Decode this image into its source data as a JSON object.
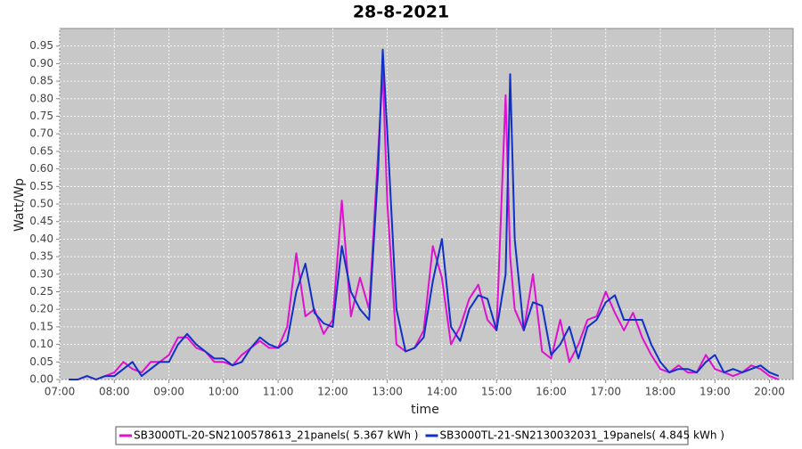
{
  "chart_data": {
    "type": "line",
    "title": "28-8-2021",
    "x_label": "time",
    "y_label": "Watt/Wp",
    "x": [
      "07:10",
      "07:20",
      "07:30",
      "07:40",
      "07:50",
      "08:00",
      "08:10",
      "08:20",
      "08:30",
      "08:40",
      "08:50",
      "09:00",
      "09:10",
      "09:20",
      "09:30",
      "09:40",
      "09:50",
      "10:00",
      "10:10",
      "10:20",
      "10:30",
      "10:40",
      "10:50",
      "11:00",
      "11:10",
      "11:20",
      "11:30",
      "11:40",
      "11:50",
      "12:00",
      "12:10",
      "12:20",
      "12:30",
      "12:40",
      "12:50",
      "12:55",
      "13:00",
      "13:10",
      "13:20",
      "13:30",
      "13:40",
      "13:50",
      "14:00",
      "14:10",
      "14:20",
      "14:30",
      "14:40",
      "14:50",
      "15:00",
      "15:10",
      "15:15",
      "15:20",
      "15:30",
      "15:40",
      "15:50",
      "16:00",
      "16:10",
      "16:20",
      "16:30",
      "16:40",
      "16:50",
      "17:00",
      "17:10",
      "17:20",
      "17:30",
      "17:40",
      "17:50",
      "18:00",
      "18:10",
      "18:20",
      "18:30",
      "18:40",
      "18:50",
      "19:00",
      "19:10",
      "19:20",
      "19:30",
      "19:40",
      "19:50",
      "20:00",
      "20:10"
    ],
    "series": [
      {
        "name": "SB3000TL-20-SN2100578613_21panels( 5.367 kWh )",
        "color": "#e010d0",
        "values": [
          0,
          0,
          0.01,
          0,
          0.01,
          0.02,
          0.05,
          0.03,
          0.02,
          0.05,
          0.05,
          0.07,
          0.12,
          0.12,
          0.09,
          0.08,
          0.05,
          0.05,
          0.04,
          0.07,
          0.09,
          0.11,
          0.09,
          0.09,
          0.15,
          0.36,
          0.18,
          0.2,
          0.13,
          0.17,
          0.51,
          0.18,
          0.29,
          0.2,
          0.65,
          0.88,
          0.5,
          0.1,
          0.08,
          0.09,
          0.14,
          0.38,
          0.29,
          0.1,
          0.15,
          0.23,
          0.27,
          0.17,
          0.14,
          0.81,
          0.35,
          0.2,
          0.14,
          0.3,
          0.08,
          0.06,
          0.17,
          0.05,
          0.1,
          0.17,
          0.18,
          0.25,
          0.19,
          0.14,
          0.19,
          0.12,
          0.07,
          0.03,
          0.02,
          0.04,
          0.02,
          0.02,
          0.07,
          0.03,
          0.02,
          0.01,
          0.02,
          0.04,
          0.03,
          0.01,
          0
        ]
      },
      {
        "name": "SB3000TL-21-SN2130032031_19panels( 4.845 kWh )",
        "color": "#1030c8",
        "values": [
          0,
          0,
          0.01,
          0,
          0.01,
          0.01,
          0.03,
          0.05,
          0.01,
          0.03,
          0.05,
          0.05,
          0.1,
          0.13,
          0.1,
          0.08,
          0.06,
          0.06,
          0.04,
          0.05,
          0.09,
          0.12,
          0.1,
          0.09,
          0.11,
          0.25,
          0.33,
          0.19,
          0.16,
          0.15,
          0.38,
          0.25,
          0.2,
          0.17,
          0.6,
          0.94,
          0.7,
          0.2,
          0.08,
          0.09,
          0.12,
          0.28,
          0.4,
          0.15,
          0.11,
          0.2,
          0.24,
          0.23,
          0.14,
          0.3,
          0.87,
          0.4,
          0.14,
          0.22,
          0.21,
          0.07,
          0.1,
          0.15,
          0.06,
          0.15,
          0.17,
          0.22,
          0.24,
          0.17,
          0.17,
          0.17,
          0.1,
          0.05,
          0.02,
          0.03,
          0.03,
          0.02,
          0.05,
          0.07,
          0.02,
          0.03,
          0.02,
          0.03,
          0.04,
          0.02,
          0.01
        ]
      }
    ],
    "xlim": [
      "07:00",
      "20:20"
    ],
    "xticks": [
      "07:00",
      "08:00",
      "09:00",
      "10:00",
      "11:00",
      "12:00",
      "13:00",
      "14:00",
      "15:00",
      "16:00",
      "17:00",
      "18:00",
      "19:00",
      "20:00"
    ],
    "ylim": [
      0,
      1.0
    ],
    "yticks": [
      {
        "value": 0,
        "label": "0.00"
      },
      {
        "value": 0.05,
        "label": "0.05"
      },
      {
        "value": 0.1,
        "label": "0.10"
      },
      {
        "value": 0.15,
        "label": "0.15"
      },
      {
        "value": 0.2,
        "label": "0.20"
      },
      {
        "value": 0.25,
        "label": "0.25"
      },
      {
        "value": 0.3,
        "label": "0.30"
      },
      {
        "value": 0.35,
        "label": "0.35"
      },
      {
        "value": 0.4,
        "label": "0.40"
      },
      {
        "value": 0.45,
        "label": "0.45"
      },
      {
        "value": 0.5,
        "label": "0.50"
      },
      {
        "value": 0.55,
        "label": "0.55"
      },
      {
        "value": 0.6,
        "label": "0.60"
      },
      {
        "value": 0.65,
        "label": "0.65"
      },
      {
        "value": 0.7,
        "label": "0.70"
      },
      {
        "value": 0.75,
        "label": "0.75"
      },
      {
        "value": 0.8,
        "label": "0.80"
      },
      {
        "value": 0.85,
        "label": "0.85"
      },
      {
        "value": 0.9,
        "label": "0.90"
      },
      {
        "value": 0.95,
        "label": "0.95"
      }
    ],
    "grid": true
  }
}
